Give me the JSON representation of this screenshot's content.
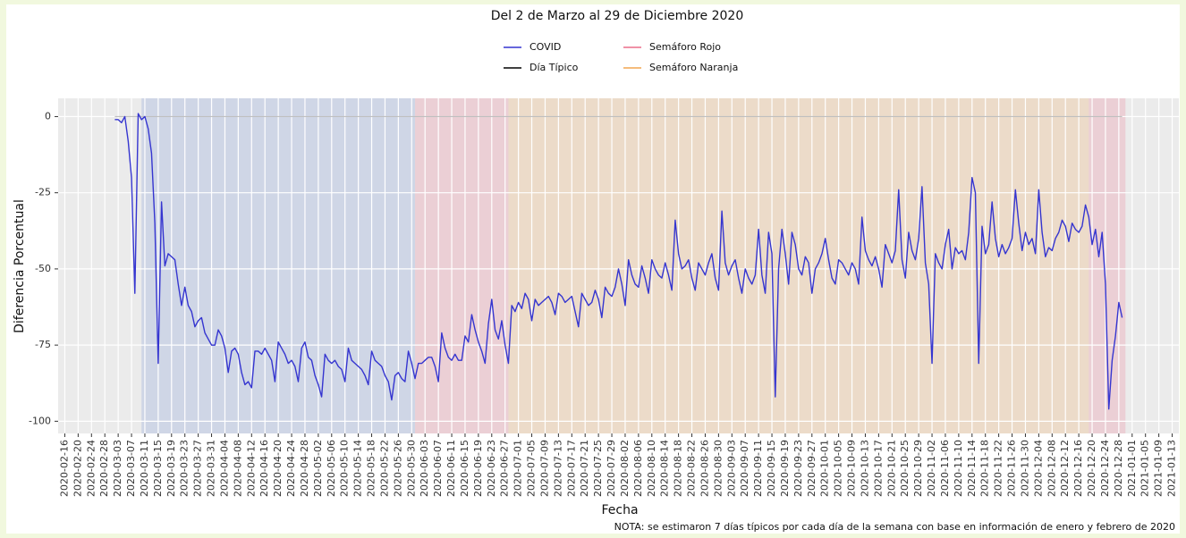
{
  "chart_data": {
    "type": "line",
    "title": "Del 2 de Marzo al 29 de Diciembre 2020",
    "x_label": "Fecha",
    "y_label": "Diferencia Porcentual",
    "note": "NOTA: se estimaron 7 días típicos por cada día de la semana con base en información de enero y febrero de 2020",
    "xlim": [
      "2020-02-14",
      "2021-01-15"
    ],
    "ylim": [
      -104,
      6
    ],
    "yticks": [
      -100,
      -75,
      -50,
      -25,
      0
    ],
    "xticks": [
      "2020-02-16",
      "2020-02-20",
      "2020-02-24",
      "2020-02-28",
      "2020-03-03",
      "2020-03-07",
      "2020-03-11",
      "2020-03-15",
      "2020-03-19",
      "2020-03-23",
      "2020-03-27",
      "2020-03-31",
      "2020-04-04",
      "2020-04-08",
      "2020-04-12",
      "2020-04-16",
      "2020-04-20",
      "2020-04-24",
      "2020-04-28",
      "2020-05-02",
      "2020-05-06",
      "2020-05-10",
      "2020-05-14",
      "2020-05-18",
      "2020-05-22",
      "2020-05-26",
      "2020-05-30",
      "2020-06-03",
      "2020-06-07",
      "2020-06-11",
      "2020-06-15",
      "2020-06-19",
      "2020-06-23",
      "2020-06-27",
      "2020-07-01",
      "2020-07-05",
      "2020-07-09",
      "2020-07-13",
      "2020-07-17",
      "2020-07-21",
      "2020-07-25",
      "2020-07-29",
      "2020-08-02",
      "2020-08-06",
      "2020-08-10",
      "2020-08-14",
      "2020-08-18",
      "2020-08-22",
      "2020-08-26",
      "2020-08-30",
      "2020-09-03",
      "2020-09-07",
      "2020-09-11",
      "2020-09-15",
      "2020-09-19",
      "2020-09-23",
      "2020-09-27",
      "2020-10-01",
      "2020-10-05",
      "2020-10-09",
      "2020-10-13",
      "2020-10-17",
      "2020-10-21",
      "2020-10-25",
      "2020-10-29",
      "2020-11-02",
      "2020-11-06",
      "2020-11-10",
      "2020-11-14",
      "2020-11-18",
      "2020-11-22",
      "2020-11-26",
      "2020-11-30",
      "2020-12-04",
      "2020-12-08",
      "2020-12-12",
      "2020-12-16",
      "2020-12-20",
      "2020-12-24",
      "2020-12-28",
      "2021-01-01",
      "2021-01-05",
      "2021-01-09",
      "2021-01-13"
    ],
    "grid": true,
    "shaded_ranges": [
      {
        "start": "2020-03-10",
        "end": "2020-05-31",
        "color": "#6f8fd8"
      }
    ],
    "x": [
      "2020-03-02",
      "2020-03-03",
      "2020-03-04",
      "2020-03-05",
      "2020-03-06",
      "2020-03-07",
      "2020-03-08",
      "2020-03-09",
      "2020-03-10",
      "2020-03-11",
      "2020-03-12",
      "2020-03-13",
      "2020-03-14",
      "2020-03-15",
      "2020-03-16",
      "2020-03-17",
      "2020-03-18",
      "2020-03-19",
      "2020-03-20",
      "2020-03-21",
      "2020-03-22",
      "2020-03-23",
      "2020-03-24",
      "2020-03-25",
      "2020-03-26",
      "2020-03-27",
      "2020-03-28",
      "2020-03-29",
      "2020-03-30",
      "2020-03-31",
      "2020-04-01",
      "2020-04-02",
      "2020-04-03",
      "2020-04-04",
      "2020-04-05",
      "2020-04-06",
      "2020-04-07",
      "2020-04-08",
      "2020-04-09",
      "2020-04-10",
      "2020-04-11",
      "2020-04-12",
      "2020-04-13",
      "2020-04-14",
      "2020-04-15",
      "2020-04-16",
      "2020-04-17",
      "2020-04-18",
      "2020-04-19",
      "2020-04-20",
      "2020-04-21",
      "2020-04-22",
      "2020-04-23",
      "2020-04-24",
      "2020-04-25",
      "2020-04-26",
      "2020-04-27",
      "2020-04-28",
      "2020-04-29",
      "2020-04-30",
      "2020-05-01",
      "2020-05-02",
      "2020-05-03",
      "2020-05-04",
      "2020-05-05",
      "2020-05-06",
      "2020-05-07",
      "2020-05-08",
      "2020-05-09",
      "2020-05-10",
      "2020-05-11",
      "2020-05-12",
      "2020-05-13",
      "2020-05-14",
      "2020-05-15",
      "2020-05-16",
      "2020-05-17",
      "2020-05-18",
      "2020-05-19",
      "2020-05-20",
      "2020-05-21",
      "2020-05-22",
      "2020-05-23",
      "2020-05-24",
      "2020-05-25",
      "2020-05-26",
      "2020-05-27",
      "2020-05-28",
      "2020-05-29",
      "2020-05-30",
      "2020-05-31",
      "2020-06-01",
      "2020-06-02",
      "2020-06-03",
      "2020-06-04",
      "2020-06-05",
      "2020-06-06",
      "2020-06-07",
      "2020-06-08",
      "2020-06-09",
      "2020-06-10",
      "2020-06-11",
      "2020-06-12",
      "2020-06-13",
      "2020-06-14",
      "2020-06-15",
      "2020-06-16",
      "2020-06-17",
      "2020-06-18",
      "2020-06-19",
      "2020-06-20",
      "2020-06-21",
      "2020-06-22",
      "2020-06-23",
      "2020-06-24",
      "2020-06-25",
      "2020-06-26",
      "2020-06-27",
      "2020-06-28",
      "2020-06-29",
      "2020-06-30",
      "2020-07-01",
      "2020-07-02",
      "2020-07-03",
      "2020-07-04",
      "2020-07-05",
      "2020-07-06",
      "2020-07-07",
      "2020-07-08",
      "2020-07-09",
      "2020-07-10",
      "2020-07-11",
      "2020-07-12",
      "2020-07-13",
      "2020-07-14",
      "2020-07-15",
      "2020-07-16",
      "2020-07-17",
      "2020-07-18",
      "2020-07-19",
      "2020-07-20",
      "2020-07-21",
      "2020-07-22",
      "2020-07-23",
      "2020-07-24",
      "2020-07-25",
      "2020-07-26",
      "2020-07-27",
      "2020-07-28",
      "2020-07-29",
      "2020-07-30",
      "2020-07-31",
      "2020-08-01",
      "2020-08-02",
      "2020-08-03",
      "2020-08-04",
      "2020-08-05",
      "2020-08-06",
      "2020-08-07",
      "2020-08-08",
      "2020-08-09",
      "2020-08-10",
      "2020-08-11",
      "2020-08-12",
      "2020-08-13",
      "2020-08-14",
      "2020-08-15",
      "2020-08-16",
      "2020-08-17",
      "2020-08-18",
      "2020-08-19",
      "2020-08-20",
      "2020-08-21",
      "2020-08-22",
      "2020-08-23",
      "2020-08-24",
      "2020-08-25",
      "2020-08-26",
      "2020-08-27",
      "2020-08-28",
      "2020-08-29",
      "2020-08-30",
      "2020-08-31",
      "2020-09-01",
      "2020-09-02",
      "2020-09-03",
      "2020-09-04",
      "2020-09-05",
      "2020-09-06",
      "2020-09-07",
      "2020-09-08",
      "2020-09-09",
      "2020-09-10",
      "2020-09-11",
      "2020-09-12",
      "2020-09-13",
      "2020-09-14",
      "2020-09-15",
      "2020-09-16",
      "2020-09-17",
      "2020-09-18",
      "2020-09-19",
      "2020-09-20",
      "2020-09-21",
      "2020-09-22",
      "2020-09-23",
      "2020-09-24",
      "2020-09-25",
      "2020-09-26",
      "2020-09-27",
      "2020-09-28",
      "2020-09-29",
      "2020-09-30",
      "2020-10-01",
      "2020-10-02",
      "2020-10-03",
      "2020-10-04",
      "2020-10-05",
      "2020-10-06",
      "2020-10-07",
      "2020-10-08",
      "2020-10-09",
      "2020-10-10",
      "2020-10-11",
      "2020-10-12",
      "2020-10-13",
      "2020-10-14",
      "2020-10-15",
      "2020-10-16",
      "2020-10-17",
      "2020-10-18",
      "2020-10-19",
      "2020-10-20",
      "2020-10-21",
      "2020-10-22",
      "2020-10-23",
      "2020-10-24",
      "2020-10-25",
      "2020-10-26",
      "2020-10-27",
      "2020-10-28",
      "2020-10-29",
      "2020-10-30",
      "2020-10-31",
      "2020-11-01",
      "2020-11-02",
      "2020-11-03",
      "2020-11-04",
      "2020-11-05",
      "2020-11-06",
      "2020-11-07",
      "2020-11-08",
      "2020-11-09",
      "2020-11-10",
      "2020-11-11",
      "2020-11-12",
      "2020-11-13",
      "2020-11-14",
      "2020-11-15",
      "2020-11-16",
      "2020-11-17",
      "2020-11-18",
      "2020-11-19",
      "2020-11-20",
      "2020-11-21",
      "2020-11-22",
      "2020-11-23",
      "2020-11-24",
      "2020-11-25",
      "2020-11-26",
      "2020-11-27",
      "2020-11-28",
      "2020-11-29",
      "2020-11-30",
      "2020-12-01",
      "2020-12-02",
      "2020-12-03",
      "2020-12-04",
      "2020-12-05",
      "2020-12-06",
      "2020-12-07",
      "2020-12-08",
      "2020-12-09",
      "2020-12-10",
      "2020-12-11",
      "2020-12-12",
      "2020-12-13",
      "2020-12-14",
      "2020-12-15",
      "2020-12-16",
      "2020-12-17",
      "2020-12-18",
      "2020-12-19",
      "2020-12-20",
      "2020-12-21",
      "2020-12-22",
      "2020-12-23",
      "2020-12-24",
      "2020-12-25",
      "2020-12-26",
      "2020-12-27",
      "2020-12-28",
      "2020-12-29"
    ],
    "series": [
      {
        "name": "COVID",
        "color": "#3535d0",
        "values": [
          -1,
          -1,
          -2,
          0,
          -8,
          -20,
          -58,
          1,
          -1,
          0,
          -4,
          -12,
          -35,
          -81,
          -28,
          -49,
          -45,
          -46,
          -47,
          -55,
          -62,
          -56,
          -62,
          -64,
          -69,
          -67,
          -66,
          -71,
          -73,
          -75,
          -75,
          -70,
          -72,
          -76,
          -84,
          -77,
          -76,
          -78,
          -84,
          -88,
          -87,
          -89,
          -77,
          -77,
          -78,
          -76,
          -78,
          -80,
          -87,
          -74,
          -76,
          -78,
          -81,
          -80,
          -82,
          -87,
          -76,
          -74,
          -79,
          -80,
          -85,
          -88,
          -92,
          -78,
          -80,
          -81,
          -80,
          -82,
          -83,
          -87,
          -76,
          -80,
          -81,
          -82,
          -83,
          -85,
          -88,
          -77,
          -80,
          -81,
          -82,
          -85,
          -87,
          -93,
          -85,
          -84,
          -86,
          -87,
          -77,
          -81,
          -86,
          -81,
          -81,
          -80,
          -79,
          -79,
          -82,
          -87,
          -71,
          -76,
          -79,
          -80,
          -78,
          -80,
          -80,
          -72,
          -74,
          -65,
          -70,
          -74,
          -77,
          -81,
          -68,
          -60,
          -70,
          -73,
          -67,
          -75,
          -81,
          -62,
          -64,
          -61,
          -63,
          -58,
          -60,
          -67,
          -60,
          -62,
          -61,
          -60,
          -59,
          -61,
          -65,
          -58,
          -59,
          -61,
          -60,
          -59,
          -64,
          -69,
          -58,
          -60,
          -62,
          -61,
          -57,
          -60,
          -66,
          -56,
          -58,
          -59,
          -56,
          -50,
          -55,
          -62,
          -47,
          -52,
          -55,
          -56,
          -49,
          -53,
          -58,
          -47,
          -50,
          -52,
          -53,
          -48,
          -52,
          -57,
          -34,
          -45,
          -50,
          -49,
          -47,
          -53,
          -57,
          -48,
          -50,
          -52,
          -48,
          -45,
          -53,
          -57,
          -31,
          -48,
          -52,
          -49,
          -47,
          -53,
          -58,
          -50,
          -53,
          -55,
          -52,
          -37,
          -52,
          -58,
          -38,
          -45,
          -92,
          -50,
          -37,
          -45,
          -55,
          -38,
          -42,
          -50,
          -52,
          -46,
          -48,
          -58,
          -50,
          -48,
          -45,
          -40,
          -47,
          -53,
          -55,
          -47,
          -48,
          -50,
          -52,
          -48,
          -50,
          -55,
          -33,
          -44,
          -47,
          -49,
          -46,
          -50,
          -56,
          -42,
          -45,
          -48,
          -44,
          -24,
          -47,
          -53,
          -38,
          -44,
          -47,
          -40,
          -23,
          -48,
          -55,
          -81,
          -45,
          -48,
          -50,
          -42,
          -37,
          -50,
          -43,
          -45,
          -44,
          -47,
          -38,
          -20,
          -25,
          -81,
          -36,
          -45,
          -42,
          -28,
          -40,
          -46,
          -42,
          -45,
          -43,
          -40,
          -24,
          -35,
          -44,
          -38,
          -42,
          -40,
          -45,
          -24,
          -38,
          -46,
          -43,
          -44,
          -40,
          -38,
          -34,
          -36,
          -41,
          -35,
          -37,
          -38,
          -36,
          -29,
          -33,
          -42,
          -37,
          -46,
          -38,
          -55,
          -96,
          -80,
          -72,
          -61,
          -66
        ]
      },
      {
        "name": "Día Típico",
        "color": "#000000",
        "x": [
          "2020-03-02",
          "2020-12-29"
        ],
        "values": [
          0,
          0
        ]
      },
      {
        "name": "Semáforo Rojo",
        "color": "#ec6f8a",
        "ranges": [
          [
            "2020-05-31",
            "2020-06-28"
          ],
          [
            "2020-12-19",
            "2020-12-30"
          ]
        ]
      },
      {
        "name": "Semáforo Naranja",
        "color": "#f2a650",
        "ranges": [
          [
            "2020-06-28",
            "2020-12-19"
          ]
        ]
      }
    ]
  }
}
